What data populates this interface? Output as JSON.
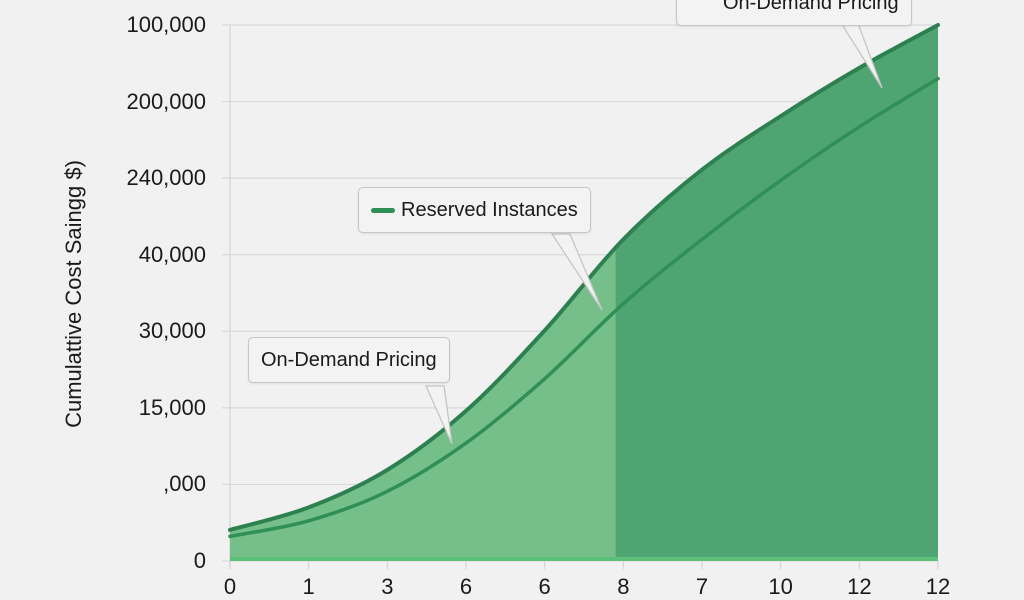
{
  "colors": {
    "background": "#f1f1f1",
    "gridline": "#d9d9d9",
    "fill_light": "#74bf8a",
    "fill_dark": "#4fa571",
    "line_dark": "#2d8050",
    "line_mid": "#2f8f55",
    "baseline": "#5cc07a",
    "callout_border": "#c6c6c6"
  },
  "chart_data": {
    "type": "area",
    "title": "",
    "xlabel": "",
    "ylabel": "Cumulattive Cost Saingg $)",
    "y_tick_labels": [
      "100,000",
      "200,000",
      "240,000",
      "40,000",
      "30,000",
      "15,000",
      ",000",
      "0"
    ],
    "x_tick_labels": [
      "0",
      "1",
      "3",
      "6",
      "6",
      "8",
      "7",
      "10",
      "12",
      "12"
    ],
    "grid": true,
    "legend_position": "callouts",
    "shaded_region_split_at_tick_index": 5,
    "series": [
      {
        "name": "On-Demand Pricing",
        "note": "upper curve, values normalized 0-1 of plot height at each x tick",
        "values": [
          0.058,
          0.1,
          0.17,
          0.28,
          0.43,
          0.6,
          0.73,
          0.83,
          0.92,
          1.0
        ]
      },
      {
        "name": "Reserved Instances",
        "note": "lower curve, values normalized 0-1 of plot height at each x tick",
        "values": [
          0.046,
          0.075,
          0.13,
          0.22,
          0.34,
          0.48,
          0.6,
          0.71,
          0.81,
          0.9
        ]
      }
    ],
    "annotations": [
      {
        "text": "On-Demand Pricing",
        "position": "top-right"
      },
      {
        "text": "Reserved Instances",
        "position": "middle",
        "has_swatch": true
      },
      {
        "text": "On-Demand Pricing",
        "position": "lower-left"
      }
    ]
  },
  "callouts": {
    "top": "On-Demand Pricing",
    "middle": "Reserved Instances",
    "lower": "On-Demand Pricing"
  }
}
